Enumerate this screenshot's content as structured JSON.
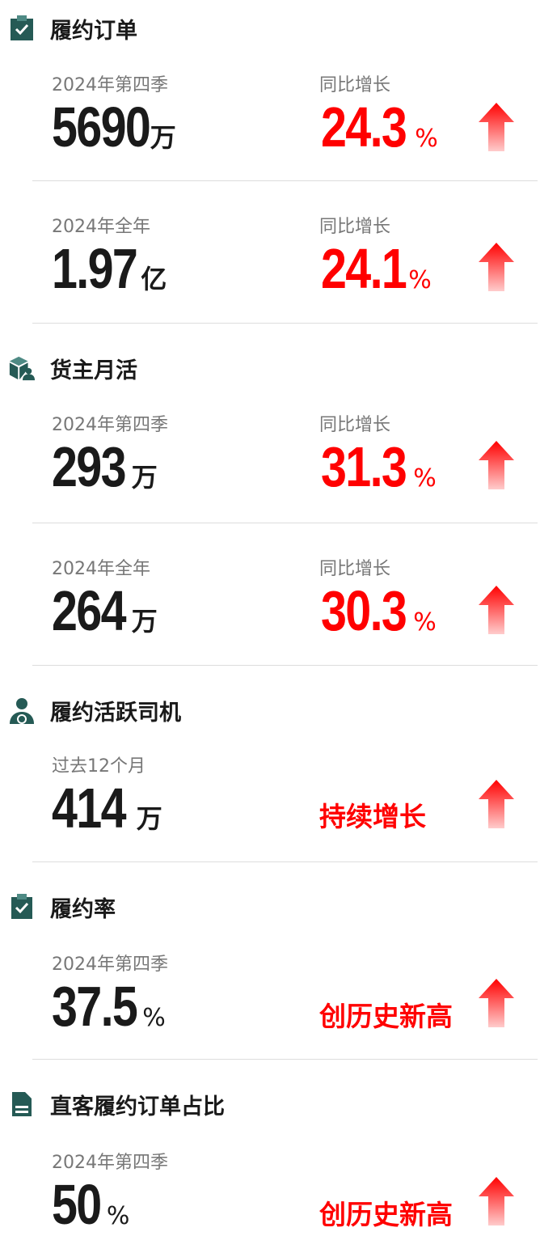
{
  "accent": "#255a55",
  "highlight": "#ff0000",
  "sections": [
    {
      "title": "履约订单",
      "icon": "clipboard-check-icon",
      "rows": [
        {
          "label": "2024年第四季",
          "value": "5690",
          "unit": "万",
          "change_label": "同比增长",
          "change": "24.3",
          "change_unit": "%"
        },
        {
          "label": "2024年全年",
          "value": "1.97",
          "unit": "亿",
          "change_label": "同比增长",
          "change": "24.1",
          "change_unit": "%"
        }
      ]
    },
    {
      "title": "货主月活",
      "icon": "package-user-icon",
      "rows": [
        {
          "label": "2024年第四季",
          "value": "293",
          "unit": "万",
          "change_label": "同比增长",
          "change": "31.3",
          "change_unit": "%"
        },
        {
          "label": "2024年全年",
          "value": "264",
          "unit": "万",
          "change_label": "同比增长",
          "change": "30.3",
          "change_unit": "%"
        }
      ]
    },
    {
      "title": "履约活跃司机",
      "icon": "driver-icon",
      "rows": [
        {
          "label": "过去12个月",
          "value": "414",
          "unit": "万",
          "status": "持续增长"
        }
      ]
    },
    {
      "title": "履约率",
      "icon": "clipboard-tick-icon",
      "rows": [
        {
          "label": "2024年第四季",
          "value": "37.5",
          "unit": "%",
          "status": "创历史新高"
        }
      ]
    },
    {
      "title": "直客履约订单占比",
      "icon": "document-icon",
      "rows": [
        {
          "label": "2024年第四季",
          "value": "50",
          "unit": "%",
          "status": "创历史新高"
        }
      ]
    }
  ]
}
